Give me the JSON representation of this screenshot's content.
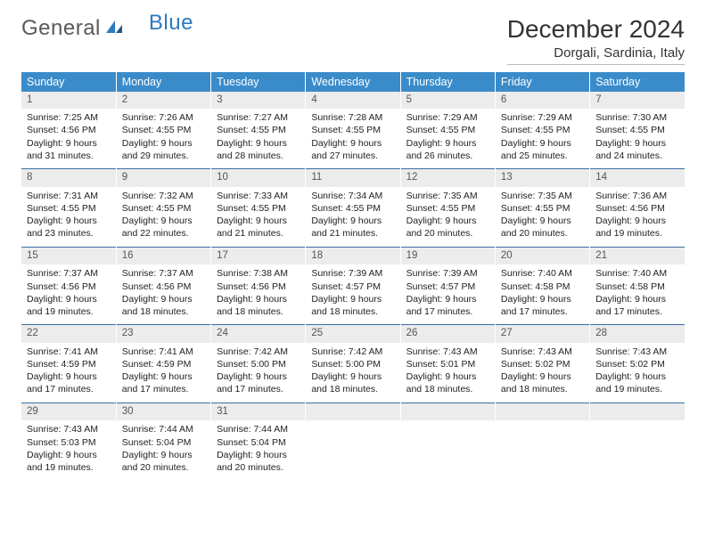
{
  "logo": {
    "text1": "General",
    "text2": "Blue"
  },
  "title": "December 2024",
  "location": "Dorgali, Sardinia, Italy",
  "colors": {
    "header_bg": "#3a8bc9",
    "header_text": "#ffffff",
    "daynum_bg": "#ececec",
    "border": "#3a6ea5",
    "text": "#222222"
  },
  "weekdays": [
    "Sunday",
    "Monday",
    "Tuesday",
    "Wednesday",
    "Thursday",
    "Friday",
    "Saturday"
  ],
  "weeks": [
    [
      {
        "n": "1",
        "sr": "7:25 AM",
        "ss": "4:56 PM",
        "dl": "9 hours and 31 minutes."
      },
      {
        "n": "2",
        "sr": "7:26 AM",
        "ss": "4:55 PM",
        "dl": "9 hours and 29 minutes."
      },
      {
        "n": "3",
        "sr": "7:27 AM",
        "ss": "4:55 PM",
        "dl": "9 hours and 28 minutes."
      },
      {
        "n": "4",
        "sr": "7:28 AM",
        "ss": "4:55 PM",
        "dl": "9 hours and 27 minutes."
      },
      {
        "n": "5",
        "sr": "7:29 AM",
        "ss": "4:55 PM",
        "dl": "9 hours and 26 minutes."
      },
      {
        "n": "6",
        "sr": "7:29 AM",
        "ss": "4:55 PM",
        "dl": "9 hours and 25 minutes."
      },
      {
        "n": "7",
        "sr": "7:30 AM",
        "ss": "4:55 PM",
        "dl": "9 hours and 24 minutes."
      }
    ],
    [
      {
        "n": "8",
        "sr": "7:31 AM",
        "ss": "4:55 PM",
        "dl": "9 hours and 23 minutes."
      },
      {
        "n": "9",
        "sr": "7:32 AM",
        "ss": "4:55 PM",
        "dl": "9 hours and 22 minutes."
      },
      {
        "n": "10",
        "sr": "7:33 AM",
        "ss": "4:55 PM",
        "dl": "9 hours and 21 minutes."
      },
      {
        "n": "11",
        "sr": "7:34 AM",
        "ss": "4:55 PM",
        "dl": "9 hours and 21 minutes."
      },
      {
        "n": "12",
        "sr": "7:35 AM",
        "ss": "4:55 PM",
        "dl": "9 hours and 20 minutes."
      },
      {
        "n": "13",
        "sr": "7:35 AM",
        "ss": "4:55 PM",
        "dl": "9 hours and 20 minutes."
      },
      {
        "n": "14",
        "sr": "7:36 AM",
        "ss": "4:56 PM",
        "dl": "9 hours and 19 minutes."
      }
    ],
    [
      {
        "n": "15",
        "sr": "7:37 AM",
        "ss": "4:56 PM",
        "dl": "9 hours and 19 minutes."
      },
      {
        "n": "16",
        "sr": "7:37 AM",
        "ss": "4:56 PM",
        "dl": "9 hours and 18 minutes."
      },
      {
        "n": "17",
        "sr": "7:38 AM",
        "ss": "4:56 PM",
        "dl": "9 hours and 18 minutes."
      },
      {
        "n": "18",
        "sr": "7:39 AM",
        "ss": "4:57 PM",
        "dl": "9 hours and 18 minutes."
      },
      {
        "n": "19",
        "sr": "7:39 AM",
        "ss": "4:57 PM",
        "dl": "9 hours and 17 minutes."
      },
      {
        "n": "20",
        "sr": "7:40 AM",
        "ss": "4:58 PM",
        "dl": "9 hours and 17 minutes."
      },
      {
        "n": "21",
        "sr": "7:40 AM",
        "ss": "4:58 PM",
        "dl": "9 hours and 17 minutes."
      }
    ],
    [
      {
        "n": "22",
        "sr": "7:41 AM",
        "ss": "4:59 PM",
        "dl": "9 hours and 17 minutes."
      },
      {
        "n": "23",
        "sr": "7:41 AM",
        "ss": "4:59 PM",
        "dl": "9 hours and 17 minutes."
      },
      {
        "n": "24",
        "sr": "7:42 AM",
        "ss": "5:00 PM",
        "dl": "9 hours and 17 minutes."
      },
      {
        "n": "25",
        "sr": "7:42 AM",
        "ss": "5:00 PM",
        "dl": "9 hours and 18 minutes."
      },
      {
        "n": "26",
        "sr": "7:43 AM",
        "ss": "5:01 PM",
        "dl": "9 hours and 18 minutes."
      },
      {
        "n": "27",
        "sr": "7:43 AM",
        "ss": "5:02 PM",
        "dl": "9 hours and 18 minutes."
      },
      {
        "n": "28",
        "sr": "7:43 AM",
        "ss": "5:02 PM",
        "dl": "9 hours and 19 minutes."
      }
    ],
    [
      {
        "n": "29",
        "sr": "7:43 AM",
        "ss": "5:03 PM",
        "dl": "9 hours and 19 minutes."
      },
      {
        "n": "30",
        "sr": "7:44 AM",
        "ss": "5:04 PM",
        "dl": "9 hours and 20 minutes."
      },
      {
        "n": "31",
        "sr": "7:44 AM",
        "ss": "5:04 PM",
        "dl": "9 hours and 20 minutes."
      },
      null,
      null,
      null,
      null
    ]
  ],
  "labels": {
    "sunrise": "Sunrise:",
    "sunset": "Sunset:",
    "daylight": "Daylight:"
  }
}
